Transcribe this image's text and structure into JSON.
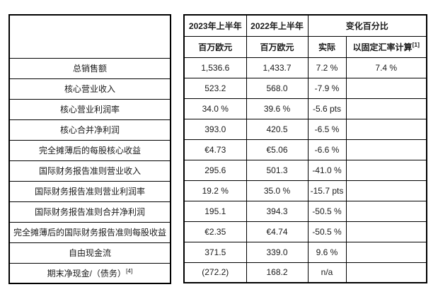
{
  "header": {
    "period_2023": "2023年上半年",
    "period_2022": "2022年上半年",
    "change_pct": "变化百分比",
    "unit_2023": "百万欧元",
    "unit_2022": "百万欧元",
    "actual": "实际",
    "constant_fx": "以固定汇率计算",
    "constant_fx_footnote": "[1]"
  },
  "rows": [
    {
      "label": "总销售额",
      "footnote": "",
      "bold": true,
      "v2023": "1,536.6",
      "v2022": "1,433.7",
      "actual": "7.2 %",
      "constant_fx": "7.4 %"
    },
    {
      "label": "核心营业收入",
      "footnote": "",
      "bold": true,
      "v2023": "523.2",
      "v2022": "568.0",
      "actual": "-7.9 %",
      "constant_fx": ""
    },
    {
      "label": "核心营业利润率",
      "footnote": "",
      "bold": false,
      "v2023": "34.0 %",
      "v2022": "39.6 %",
      "actual": "-5.6 pts",
      "constant_fx": ""
    },
    {
      "label": "核心合并净利润",
      "footnote": "",
      "bold": true,
      "v2023": "393.0",
      "v2022": "420.5",
      "actual": "-6.5 %",
      "constant_fx": ""
    },
    {
      "label": "完全摊薄后的每股核心收益",
      "footnote": "",
      "bold": false,
      "v2023": "€4.73",
      "v2022": "€5.06",
      "actual": "-6.6 %",
      "constant_fx": ""
    },
    {
      "label": "国际财务报告准则营业收入",
      "footnote": "",
      "bold": true,
      "v2023": "295.6",
      "v2022": "501.3",
      "actual": "-41.0 %",
      "constant_fx": ""
    },
    {
      "label": "国际财务报告准则营业利润率",
      "footnote": "",
      "bold": false,
      "v2023": "19.2 %",
      "v2022": "35.0 %",
      "actual": "-15.7 pts",
      "constant_fx": ""
    },
    {
      "label": "国际财务报告准则合并净利润",
      "footnote": "",
      "bold": true,
      "v2023": "195.1",
      "v2022": "394.3",
      "actual": "-50.5 %",
      "constant_fx": ""
    },
    {
      "label": "完全摊薄后的国际财务报告准则每股收益",
      "footnote": "",
      "bold": false,
      "v2023": "€2.35",
      "v2022": "€4.74",
      "actual": "-50.5 %",
      "constant_fx": ""
    },
    {
      "label": "自由现金流",
      "footnote": "",
      "bold": true,
      "v2023": "371.5",
      "v2022": "339.0",
      "actual": "9.6 %",
      "constant_fx": ""
    },
    {
      "label": "期末净现金/（债务）",
      "footnote": "[4]",
      "bold": false,
      "v2023": "(272.2)",
      "v2022": "168.2",
      "actual": "n/a",
      "constant_fx": ""
    }
  ],
  "colors": {
    "border": "#000000",
    "text": "#1a1a1a",
    "background": "#ffffff"
  }
}
